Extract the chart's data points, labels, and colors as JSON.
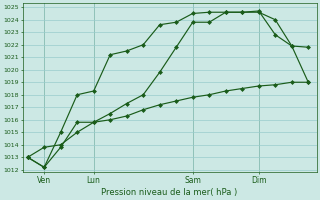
{
  "title": "Pression niveau de la mer( hPa )",
  "bg_color": "#cce8e4",
  "grid_color": "#99cccc",
  "line_color": "#1a5c1a",
  "ylim_min": 1012,
  "ylim_max": 1025,
  "yticks": [
    1012,
    1013,
    1014,
    1015,
    1016,
    1017,
    1018,
    1019,
    1020,
    1021,
    1022,
    1023,
    1024,
    1025
  ],
  "xtick_labels": [
    "Ven",
    "Lun",
    "Sam",
    "Dim"
  ],
  "xtick_positions": [
    1,
    4,
    10,
    14
  ],
  "vline_positions": [
    1,
    4,
    10,
    14
  ],
  "series1_x": [
    0,
    1,
    2,
    3,
    4,
    5,
    6,
    7,
    8,
    9,
    10,
    11,
    12,
    13,
    14,
    15,
    16,
    17
  ],
  "series1_y": [
    1013.0,
    1012.2,
    1013.8,
    1015.8,
    1015.8,
    1016.5,
    1017.3,
    1018.0,
    1019.8,
    1021.8,
    1023.8,
    1023.8,
    1024.6,
    1024.6,
    1024.6,
    1024.0,
    1021.9,
    1021.8
  ],
  "series2_x": [
    0,
    1,
    2,
    3,
    4,
    5,
    6,
    7,
    8,
    9,
    10,
    11,
    12,
    13,
    14,
    15,
    16,
    17
  ],
  "series2_y": [
    1013.0,
    1012.2,
    1015.0,
    1018.0,
    1018.3,
    1021.2,
    1021.5,
    1022.0,
    1023.6,
    1023.8,
    1024.5,
    1024.6,
    1024.6,
    1024.6,
    1024.7,
    1022.8,
    1021.9,
    1019.0
  ],
  "series3_x": [
    0,
    1,
    2,
    3,
    4,
    5,
    6,
    7,
    8,
    9,
    10,
    11,
    12,
    13,
    14,
    15,
    16,
    17
  ],
  "series3_y": [
    1013.0,
    1013.8,
    1014.0,
    1015.0,
    1015.8,
    1016.0,
    1016.3,
    1016.8,
    1017.2,
    1017.5,
    1017.8,
    1018.0,
    1018.3,
    1018.5,
    1018.7,
    1018.8,
    1019.0,
    1019.0
  ],
  "figsize": [
    3.2,
    2.0
  ],
  "dpi": 100
}
